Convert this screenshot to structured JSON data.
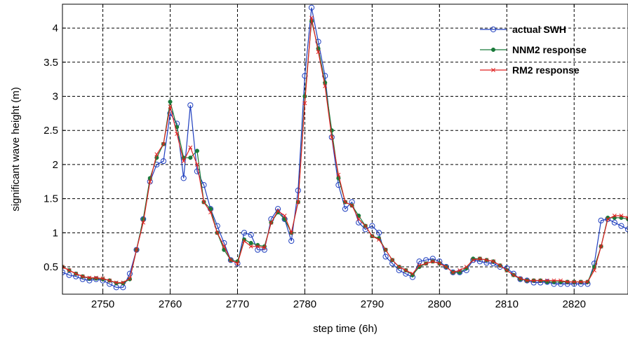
{
  "chart_data": {
    "type": "line",
    "title": "",
    "xlabel": "step time (6h)",
    "ylabel": "significant wave height (m)",
    "xlim": [
      2744,
      2828
    ],
    "ylim": [
      0.1,
      4.35
    ],
    "xticks": [
      2750,
      2760,
      2770,
      2780,
      2790,
      2800,
      2810,
      2820
    ],
    "yticks": [
      0.5,
      1,
      1.5,
      2,
      2.5,
      3,
      3.5,
      4
    ],
    "ytick_labels": [
      "0.5",
      "1",
      "1.5",
      "2",
      "2.5",
      "3",
      "3.5",
      "4"
    ],
    "grid": true,
    "legend_position": "top-right",
    "series": [
      {
        "name": "actual SWH",
        "color": "#1f3fbf",
        "marker": "circle",
        "x": [
          2744,
          2745,
          2746,
          2747,
          2748,
          2749,
          2750,
          2751,
          2752,
          2753,
          2754,
          2755,
          2756,
          2757,
          2758,
          2759,
          2760,
          2761,
          2762,
          2763,
          2764,
          2765,
          2766,
          2767,
          2768,
          2769,
          2770,
          2771,
          2772,
          2773,
          2774,
          2775,
          2776,
          2777,
          2778,
          2779,
          2780,
          2781,
          2782,
          2783,
          2784,
          2785,
          2786,
          2787,
          2788,
          2789,
          2790,
          2791,
          2792,
          2793,
          2794,
          2795,
          2796,
          2797,
          2798,
          2799,
          2800,
          2801,
          2802,
          2803,
          2804,
          2805,
          2806,
          2807,
          2808,
          2809,
          2810,
          2811,
          2812,
          2813,
          2814,
          2815,
          2816,
          2817,
          2818,
          2819,
          2820,
          2821,
          2822,
          2823,
          2824,
          2825,
          2826,
          2827,
          2828
        ],
        "y": [
          0.42,
          0.38,
          0.36,
          0.32,
          0.3,
          0.32,
          0.3,
          0.25,
          0.2,
          0.2,
          0.4,
          0.75,
          1.2,
          1.75,
          2.0,
          2.05,
          2.75,
          2.6,
          1.8,
          2.87,
          1.9,
          1.7,
          1.35,
          1.1,
          0.85,
          0.6,
          0.55,
          1.0,
          0.97,
          0.75,
          0.75,
          1.2,
          1.35,
          1.2,
          0.88,
          1.62,
          3.3,
          4.3,
          3.8,
          3.3,
          2.4,
          1.7,
          1.35,
          1.45,
          1.15,
          1.05,
          1.1,
          1.0,
          0.65,
          0.55,
          0.45,
          0.4,
          0.35,
          0.58,
          0.6,
          0.62,
          0.58,
          0.5,
          0.42,
          0.42,
          0.45,
          0.6,
          0.58,
          0.56,
          0.55,
          0.5,
          0.48,
          0.4,
          0.32,
          0.3,
          0.27,
          0.27,
          0.28,
          0.25,
          0.25,
          0.25,
          0.25,
          0.25,
          0.25,
          0.55,
          1.18,
          1.2,
          1.15,
          1.1,
          1.05
        ]
      },
      {
        "name": "NNM2 response",
        "color": "#1a7a3a",
        "marker": "dot",
        "x": [
          2744,
          2745,
          2746,
          2747,
          2748,
          2749,
          2750,
          2751,
          2752,
          2753,
          2754,
          2755,
          2756,
          2757,
          2758,
          2759,
          2760,
          2761,
          2762,
          2763,
          2764,
          2765,
          2766,
          2767,
          2768,
          2769,
          2770,
          2771,
          2772,
          2773,
          2774,
          2775,
          2776,
          2777,
          2778,
          2779,
          2780,
          2781,
          2782,
          2783,
          2784,
          2785,
          2786,
          2787,
          2788,
          2789,
          2790,
          2791,
          2792,
          2793,
          2794,
          2795,
          2796,
          2797,
          2798,
          2799,
          2800,
          2801,
          2802,
          2803,
          2804,
          2805,
          2806,
          2807,
          2808,
          2809,
          2810,
          2811,
          2812,
          2813,
          2814,
          2815,
          2816,
          2817,
          2818,
          2819,
          2820,
          2821,
          2822,
          2823,
          2824,
          2825,
          2826,
          2827,
          2828
        ],
        "y": [
          0.5,
          0.45,
          0.4,
          0.36,
          0.33,
          0.33,
          0.32,
          0.3,
          0.26,
          0.26,
          0.32,
          0.75,
          1.2,
          1.8,
          2.1,
          2.3,
          2.92,
          2.55,
          2.1,
          2.1,
          2.2,
          1.45,
          1.35,
          1.0,
          0.75,
          0.6,
          0.58,
          0.9,
          0.85,
          0.82,
          0.8,
          1.15,
          1.3,
          1.2,
          1.0,
          1.45,
          3.0,
          4.1,
          3.7,
          3.2,
          2.5,
          1.8,
          1.45,
          1.4,
          1.25,
          1.1,
          0.95,
          0.92,
          0.75,
          0.6,
          0.5,
          0.45,
          0.38,
          0.5,
          0.55,
          0.58,
          0.55,
          0.5,
          0.42,
          0.42,
          0.48,
          0.62,
          0.62,
          0.6,
          0.58,
          0.52,
          0.45,
          0.38,
          0.32,
          0.3,
          0.3,
          0.3,
          0.28,
          0.28,
          0.28,
          0.28,
          0.28,
          0.28,
          0.28,
          0.5,
          0.8,
          1.22,
          1.22,
          1.22,
          1.2
        ]
      },
      {
        "name": "RM2 response",
        "color": "#e02020",
        "marker": "x",
        "x": [
          2744,
          2745,
          2746,
          2747,
          2748,
          2749,
          2750,
          2751,
          2752,
          2753,
          2754,
          2755,
          2756,
          2757,
          2758,
          2759,
          2760,
          2761,
          2762,
          2763,
          2764,
          2765,
          2766,
          2767,
          2768,
          2769,
          2770,
          2771,
          2772,
          2773,
          2774,
          2775,
          2776,
          2777,
          2778,
          2779,
          2780,
          2781,
          2782,
          2783,
          2784,
          2785,
          2786,
          2787,
          2788,
          2789,
          2790,
          2791,
          2792,
          2793,
          2794,
          2795,
          2796,
          2797,
          2798,
          2799,
          2800,
          2801,
          2802,
          2803,
          2804,
          2805,
          2806,
          2807,
          2808,
          2809,
          2810,
          2811,
          2812,
          2813,
          2814,
          2815,
          2816,
          2817,
          2818,
          2819,
          2820,
          2821,
          2822,
          2823,
          2824,
          2825,
          2826,
          2827,
          2828
        ],
        "y": [
          0.5,
          0.45,
          0.4,
          0.36,
          0.34,
          0.34,
          0.33,
          0.3,
          0.27,
          0.27,
          0.33,
          0.75,
          1.15,
          1.75,
          2.15,
          2.3,
          2.85,
          2.45,
          2.05,
          2.25,
          2.0,
          1.45,
          1.3,
          1.0,
          0.8,
          0.6,
          0.55,
          0.88,
          0.8,
          0.8,
          0.78,
          1.15,
          1.32,
          1.25,
          1.0,
          1.45,
          2.9,
          4.15,
          3.65,
          3.15,
          2.4,
          1.85,
          1.45,
          1.4,
          1.2,
          1.1,
          0.95,
          0.9,
          0.75,
          0.6,
          0.5,
          0.45,
          0.4,
          0.52,
          0.55,
          0.58,
          0.55,
          0.5,
          0.42,
          0.45,
          0.5,
          0.6,
          0.62,
          0.6,
          0.58,
          0.52,
          0.45,
          0.38,
          0.33,
          0.3,
          0.3,
          0.3,
          0.3,
          0.3,
          0.3,
          0.28,
          0.28,
          0.28,
          0.28,
          0.45,
          0.8,
          1.2,
          1.25,
          1.25,
          1.22
        ]
      }
    ]
  }
}
